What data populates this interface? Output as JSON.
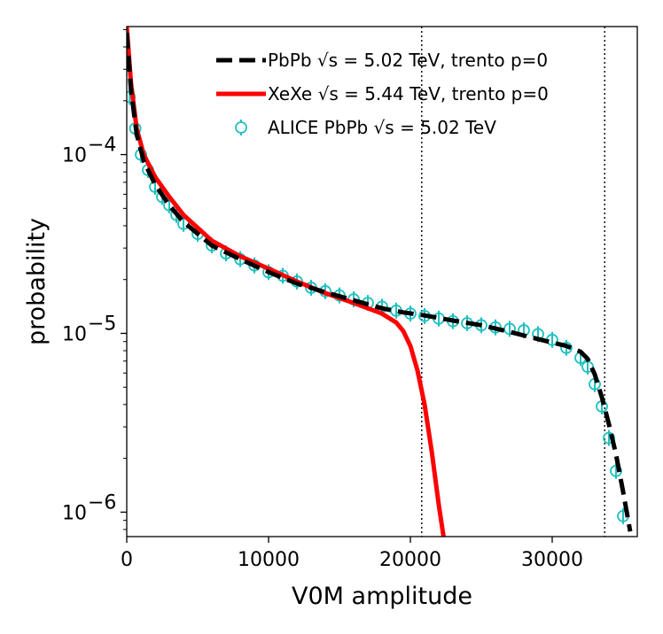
{
  "chart_data": {
    "type": "line",
    "xlabel": "V0M amplitude",
    "ylabel": "probability",
    "xlim": [
      0,
      36000
    ],
    "ylim": [
      7.3e-07,
      0.00052
    ],
    "yscale": "log",
    "x_ticks": [
      0,
      10000,
      20000,
      30000
    ],
    "x_tick_labels": [
      "0",
      "10000",
      "20000",
      "30000"
    ],
    "y_ticks": [
      1e-06,
      1e-05,
      0.0001
    ],
    "y_tick_labels": [
      {
        "base": "10",
        "exp": "−6"
      },
      {
        "base": "10",
        "exp": "−5"
      },
      {
        "base": "10",
        "exp": "−4"
      }
    ],
    "grid": false,
    "legend_position": "top-right",
    "vertical_lines": [
      20800,
      33700
    ],
    "series": [
      {
        "name": "PbPb √s = 5.02 TeV, trento p=0",
        "legend_text": "PbPb √s = 5.02 TeV, trento p=0",
        "style": "dashed",
        "color": "#000000",
        "x": [
          0,
          300,
          700,
          1200,
          2000,
          3000,
          4000,
          6000,
          8000,
          10000,
          12000,
          14000,
          16000,
          18000,
          19500,
          21000,
          23000,
          25000,
          27000,
          29000,
          31000,
          32000,
          32500,
          33000,
          33500,
          34000,
          34500,
          35000,
          35500
        ],
        "y": [
          0.00048,
          0.00023,
          0.00013,
          9.2e-05,
          6.8e-05,
          5.2e-05,
          4.2e-05,
          3.1e-05,
          2.6e-05,
          2.2e-05,
          1.9e-05,
          1.7e-05,
          1.53e-05,
          1.38e-05,
          1.31e-05,
          1.26e-05,
          1.18e-05,
          1.11e-05,
          1.02e-05,
          9.3e-06,
          8.5e-06,
          7.9e-06,
          7.2e-06,
          5.9e-06,
          4.4e-06,
          3.1e-06,
          2.1e-06,
          1.3e-06,
          7.8e-07
        ]
      },
      {
        "name": "XeXe √s = 5.44 TeV, trento p=0",
        "legend_text": "XeXe √s = 5.44 TeV, trento p=0",
        "style": "solid",
        "color": "#ff0000",
        "x": [
          0,
          300,
          700,
          1200,
          2000,
          3000,
          4000,
          6000,
          8000,
          10000,
          12000,
          14000,
          16000,
          18000,
          19000,
          19500,
          20000,
          20500,
          21000,
          21500,
          22000,
          22500
        ],
        "y": [
          0.00052,
          0.00025,
          0.00014,
          0.0001,
          7.5e-05,
          5.8e-05,
          4.6e-05,
          3.3e-05,
          2.7e-05,
          2.3e-05,
          1.95e-05,
          1.68e-05,
          1.48e-05,
          1.29e-05,
          1.15e-05,
          1.03e-05,
          8.5e-06,
          6.2e-06,
          4e-06,
          2.2e-06,
          1.1e-06,
          6e-07
        ]
      },
      {
        "name": "ALICE PbPb √s = 5.02 TeV",
        "legend_text": "ALICE PbPb √s = 5.02 TeV",
        "style": "markers",
        "color": "#20c0c0",
        "x": [
          200,
          600,
          1000,
          1500,
          2000,
          2500,
          3000,
          3500,
          4000,
          5000,
          6000,
          7000,
          8000,
          9000,
          10000,
          11000,
          12000,
          13000,
          14000,
          15000,
          16000,
          17000,
          18000,
          19000,
          20000,
          21000,
          22000,
          23000,
          24000,
          25000,
          26000,
          27000,
          28000,
          29000,
          30000,
          31000,
          32000,
          32500,
          33000,
          33500,
          34000,
          34500,
          35000
        ],
        "y": [
          0.00021,
          0.00014,
          0.0001,
          8.2e-05,
          6.6e-05,
          5.8e-05,
          5.2e-05,
          4.6e-05,
          4.1e-05,
          3.6e-05,
          3.1e-05,
          2.8e-05,
          2.6e-05,
          2.4e-05,
          2.2e-05,
          2.1e-05,
          1.95e-05,
          1.8e-05,
          1.72e-05,
          1.63e-05,
          1.55e-05,
          1.48e-05,
          1.41e-05,
          1.34e-05,
          1.29e-05,
          1.25e-05,
          1.21e-05,
          1.17e-05,
          1.14e-05,
          1.11e-05,
          1.08e-05,
          1.06e-05,
          1.04e-05,
          9.9e-06,
          9.2e-06,
          8.3e-06,
          7.3e-06,
          6.5e-06,
          5.2e-06,
          3.9e-06,
          2.6e-06,
          1.7e-06,
          9.5e-07
        ]
      }
    ]
  }
}
